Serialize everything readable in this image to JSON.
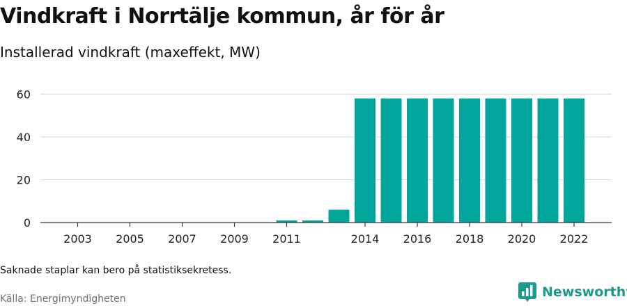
{
  "title": "Vindkraft i Norrtälje kommun, år för år",
  "subtitle": "Installerad vindkraft (maxeffekt, MW)",
  "note": "Saknade staplar kan bero på statistiksekretess.",
  "source": "Källa: Energimyndigheten",
  "brand": {
    "name": "Newsworthy",
    "icon": "newsworthy-logo-icon"
  },
  "colors": {
    "bar": "#00a69b",
    "brand": "#1d9a8e",
    "grid": "#d9d9d9",
    "axis": "#333333"
  },
  "chart_data": {
    "type": "bar",
    "categories": [
      "2003",
      "2004",
      "2005",
      "2006",
      "2007",
      "2008",
      "2009",
      "2010",
      "2011",
      "2012",
      "2013",
      "2014",
      "2015",
      "2016",
      "2017",
      "2018",
      "2019",
      "2020",
      "2021",
      "2022"
    ],
    "values": [
      0,
      0,
      0,
      0,
      0,
      0,
      0,
      0,
      1,
      1,
      6,
      58,
      58,
      58,
      58,
      58,
      58,
      58,
      58,
      58
    ],
    "x_tick_labels": [
      "2003",
      "2005",
      "2007",
      "2009",
      "2011",
      "2014",
      "2016",
      "2018",
      "2020",
      "2022"
    ],
    "y_ticks": [
      0,
      20,
      40,
      60
    ],
    "ylim": [
      0,
      65
    ],
    "xlabel": "",
    "ylabel": "",
    "grid": true,
    "legend": "none"
  }
}
